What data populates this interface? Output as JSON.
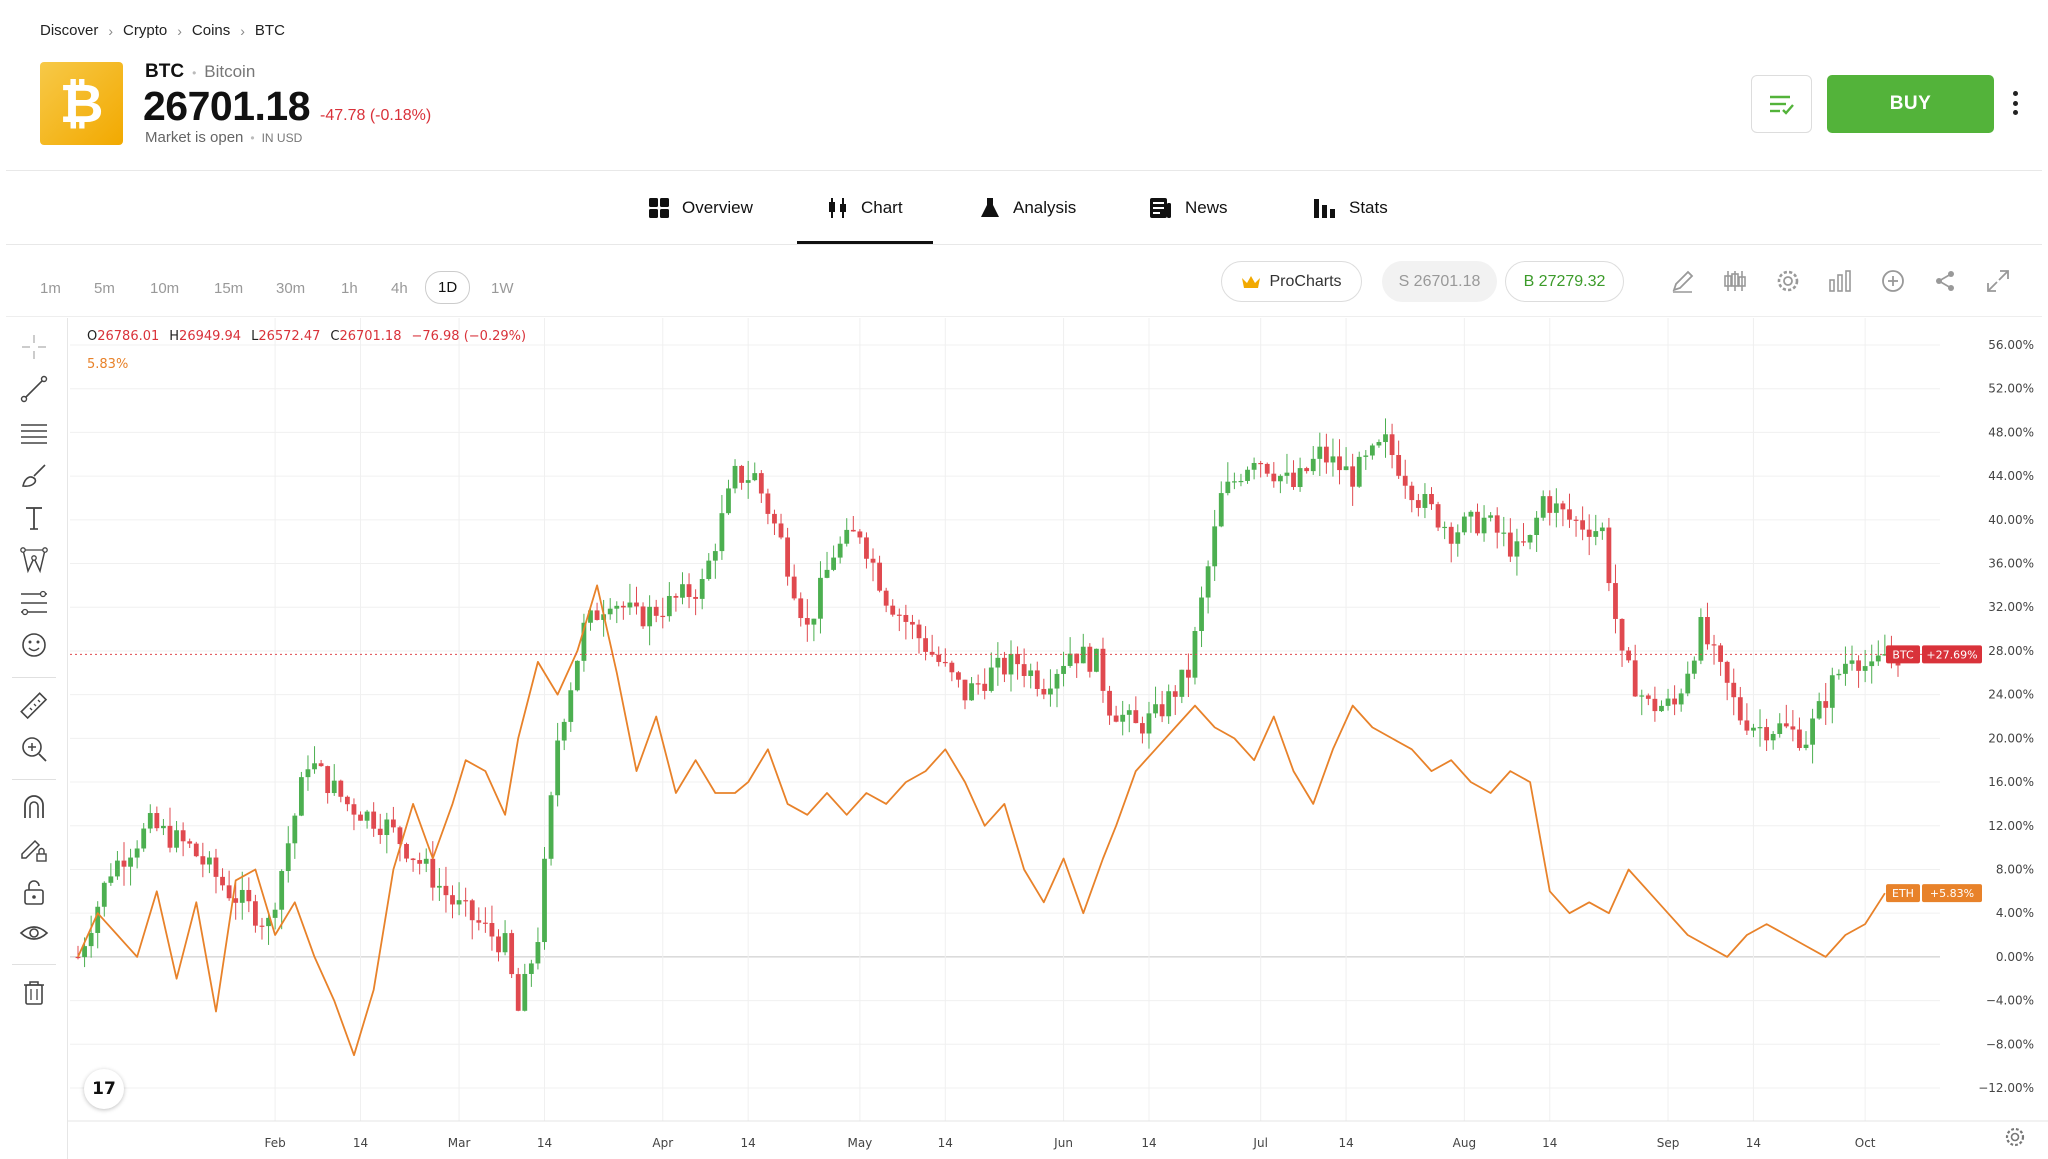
{
  "breadcrumb": [
    "Discover",
    "Crypto",
    "Coins",
    "BTC"
  ],
  "coin": {
    "logo_glyph": "₿",
    "ticker": "BTC",
    "name": "Bitcoin",
    "price": "26701.18",
    "change": "-47.78 (-0.18%)",
    "market_status": "Market is open",
    "currency_note": "IN USD"
  },
  "actions": {
    "buy_label": "BUY",
    "watchlist_icon": "watchlist-icon",
    "more_icon": "more-vertical-icon"
  },
  "tabs": [
    {
      "label": "Overview",
      "icon": "overview-grid-icon",
      "active": false
    },
    {
      "label": "Chart",
      "icon": "candles-icon",
      "active": true
    },
    {
      "label": "Analysis",
      "icon": "flask-icon",
      "active": false
    },
    {
      "label": "News",
      "icon": "newspaper-icon",
      "active": false
    },
    {
      "label": "Stats",
      "icon": "bar-stats-icon",
      "active": false
    }
  ],
  "timeframes": [
    "1m",
    "5m",
    "10m",
    "15m",
    "30m",
    "1h",
    "4h",
    "1D",
    "1W"
  ],
  "active_timeframe": "1D",
  "toolbar": {
    "procharts_label": "ProCharts",
    "sell_label": "S 26701.18",
    "buy_label": "B 27279.32",
    "icons": [
      "pencil-icon",
      "candles-icon",
      "settings-icon",
      "indicators-icon",
      "add-circle-icon",
      "share-icon",
      "expand-icon"
    ]
  },
  "drawing_tools": [
    "crosshair-icon",
    "trend-line-icon",
    "horizontal-lines-icon",
    "brush-icon",
    "text-icon",
    "pattern-icon",
    "fib-icon",
    "emoji-icon",
    "ruler-icon",
    "zoom-in-icon",
    "magnet-icon",
    "lock-draw-icon",
    "lock-icon",
    "eye-icon",
    "trash-icon"
  ],
  "ohlc": {
    "o_label": "O",
    "o": "26786.01",
    "h_label": "H",
    "h": "26949.94",
    "l_label": "L",
    "l": "26572.47",
    "c_label": "C",
    "c": "26701.18",
    "chg": "−76.98 (−0.29%)"
  },
  "eth_legend": "5.83%",
  "tv_logo": "17",
  "colors": {
    "up": "#4caf50",
    "down": "#e0494f",
    "eth_line": "#e8822a",
    "buy": "#53b33a",
    "brand": "#f2a900"
  },
  "chart_data": {
    "type": "line",
    "y_unit": "%",
    "ylim": [
      -14,
      58
    ],
    "y_ticks": [
      "56.00%",
      "52.00%",
      "48.00%",
      "44.00%",
      "40.00%",
      "36.00%",
      "32.00%",
      "28.00%",
      "24.00%",
      "20.00%",
      "16.00%",
      "12.00%",
      "8.00%",
      "4.00%",
      "0.00%",
      "−4.00%",
      "−8.00%",
      "−12.00%"
    ],
    "y_tick_values": [
      56,
      52,
      48,
      44,
      40,
      36,
      32,
      28,
      24,
      20,
      16,
      12,
      8,
      4,
      0,
      -4,
      -8,
      -12
    ],
    "x_ticks": [
      "Feb",
      "14",
      "Mar",
      "14",
      "Apr",
      "14",
      "May",
      "14",
      "Jun",
      "14",
      "Jul",
      "14",
      "Aug",
      "14",
      "Sep",
      "14",
      "Oct"
    ],
    "x_tick_days": [
      31,
      44,
      59,
      72,
      90,
      103,
      120,
      133,
      151,
      164,
      181,
      194,
      212,
      225,
      243,
      256,
      273
    ],
    "x_range_days": [
      1,
      278
    ],
    "btc_label": "BTC",
    "btc_value": "+27.69%",
    "btc_last": 27.69,
    "eth_label": "ETH",
    "eth_value": "+5.83%",
    "eth_last": 5.83,
    "series": [
      {
        "name": "BTC",
        "style": "candlestick",
        "close_days": [
          1,
          6,
          12,
          18,
          24,
          30,
          36,
          42,
          48,
          54,
          58,
          60,
          66,
          68,
          71,
          74,
          78,
          82,
          86,
          90,
          96,
          101,
          104,
          108,
          112,
          116,
          120,
          124,
          128,
          132,
          136,
          140,
          144,
          148,
          152,
          156,
          158,
          162,
          165,
          170,
          175,
          180,
          186,
          190,
          195,
          200,
          205,
          210,
          215,
          220,
          222,
          224,
          228,
          233,
          236,
          240,
          244,
          248,
          254,
          257,
          260,
          264,
          268,
          271,
          274,
          276
        ],
        "close_values": [
          0,
          8,
          12,
          10,
          6,
          3,
          18,
          14,
          12,
          8,
          5,
          4,
          1,
          -5,
          2,
          20,
          30,
          33,
          31,
          32,
          34,
          44,
          44,
          38,
          30,
          37,
          39,
          33,
          30,
          27,
          24,
          26,
          27,
          25,
          28,
          27,
          23,
          21,
          22,
          26,
          42,
          46,
          43,
          46,
          44,
          47,
          42,
          39,
          40,
          37,
          38,
          42,
          40,
          39,
          27,
          23,
          23,
          30,
          22,
          21,
          21,
          20,
          25,
          28,
          26,
          27.69
        ]
      },
      {
        "name": "ETH",
        "style": "line",
        "days": [
          1,
          4,
          7,
          10,
          13,
          16,
          19,
          22,
          25,
          28,
          31,
          34,
          37,
          40,
          43,
          46,
          49,
          52,
          55,
          58,
          60,
          63,
          66,
          68,
          71,
          74,
          77,
          80,
          83,
          86,
          89,
          92,
          95,
          98,
          101,
          103,
          106,
          109,
          112,
          115,
          118,
          121,
          124,
          127,
          130,
          133,
          136,
          139,
          142,
          145,
          148,
          151,
          154,
          157,
          159,
          162,
          165,
          168,
          171,
          174,
          177,
          180,
          183,
          186,
          189,
          192,
          195,
          198,
          201,
          204,
          207,
          210,
          213,
          216,
          219,
          222,
          225,
          228,
          231,
          234,
          237,
          240,
          243,
          246,
          249,
          252,
          255,
          258,
          261,
          264,
          267,
          270,
          273,
          276
        ],
        "values": [
          0,
          4,
          2,
          0,
          6,
          -2,
          5,
          -5,
          7,
          8,
          2,
          5,
          0,
          -4,
          -9,
          -3,
          8,
          14,
          9,
          14,
          18,
          17,
          13,
          20,
          27,
          24,
          28,
          34,
          26,
          17,
          22,
          15,
          18,
          15,
          15,
          16,
          19,
          14,
          13,
          15,
          13,
          15,
          14,
          16,
          17,
          19,
          16,
          12,
          14,
          8,
          5,
          9,
          4,
          9,
          12,
          17,
          19,
          21,
          23,
          21,
          20,
          18,
          22,
          17,
          14,
          19,
          23,
          21,
          20,
          19,
          17,
          18,
          16,
          15,
          17,
          16,
          6,
          4,
          5,
          4,
          8,
          6,
          4,
          2,
          1,
          0,
          2,
          3,
          2,
          1,
          0,
          2,
          3,
          5.83
        ]
      }
    ]
  }
}
